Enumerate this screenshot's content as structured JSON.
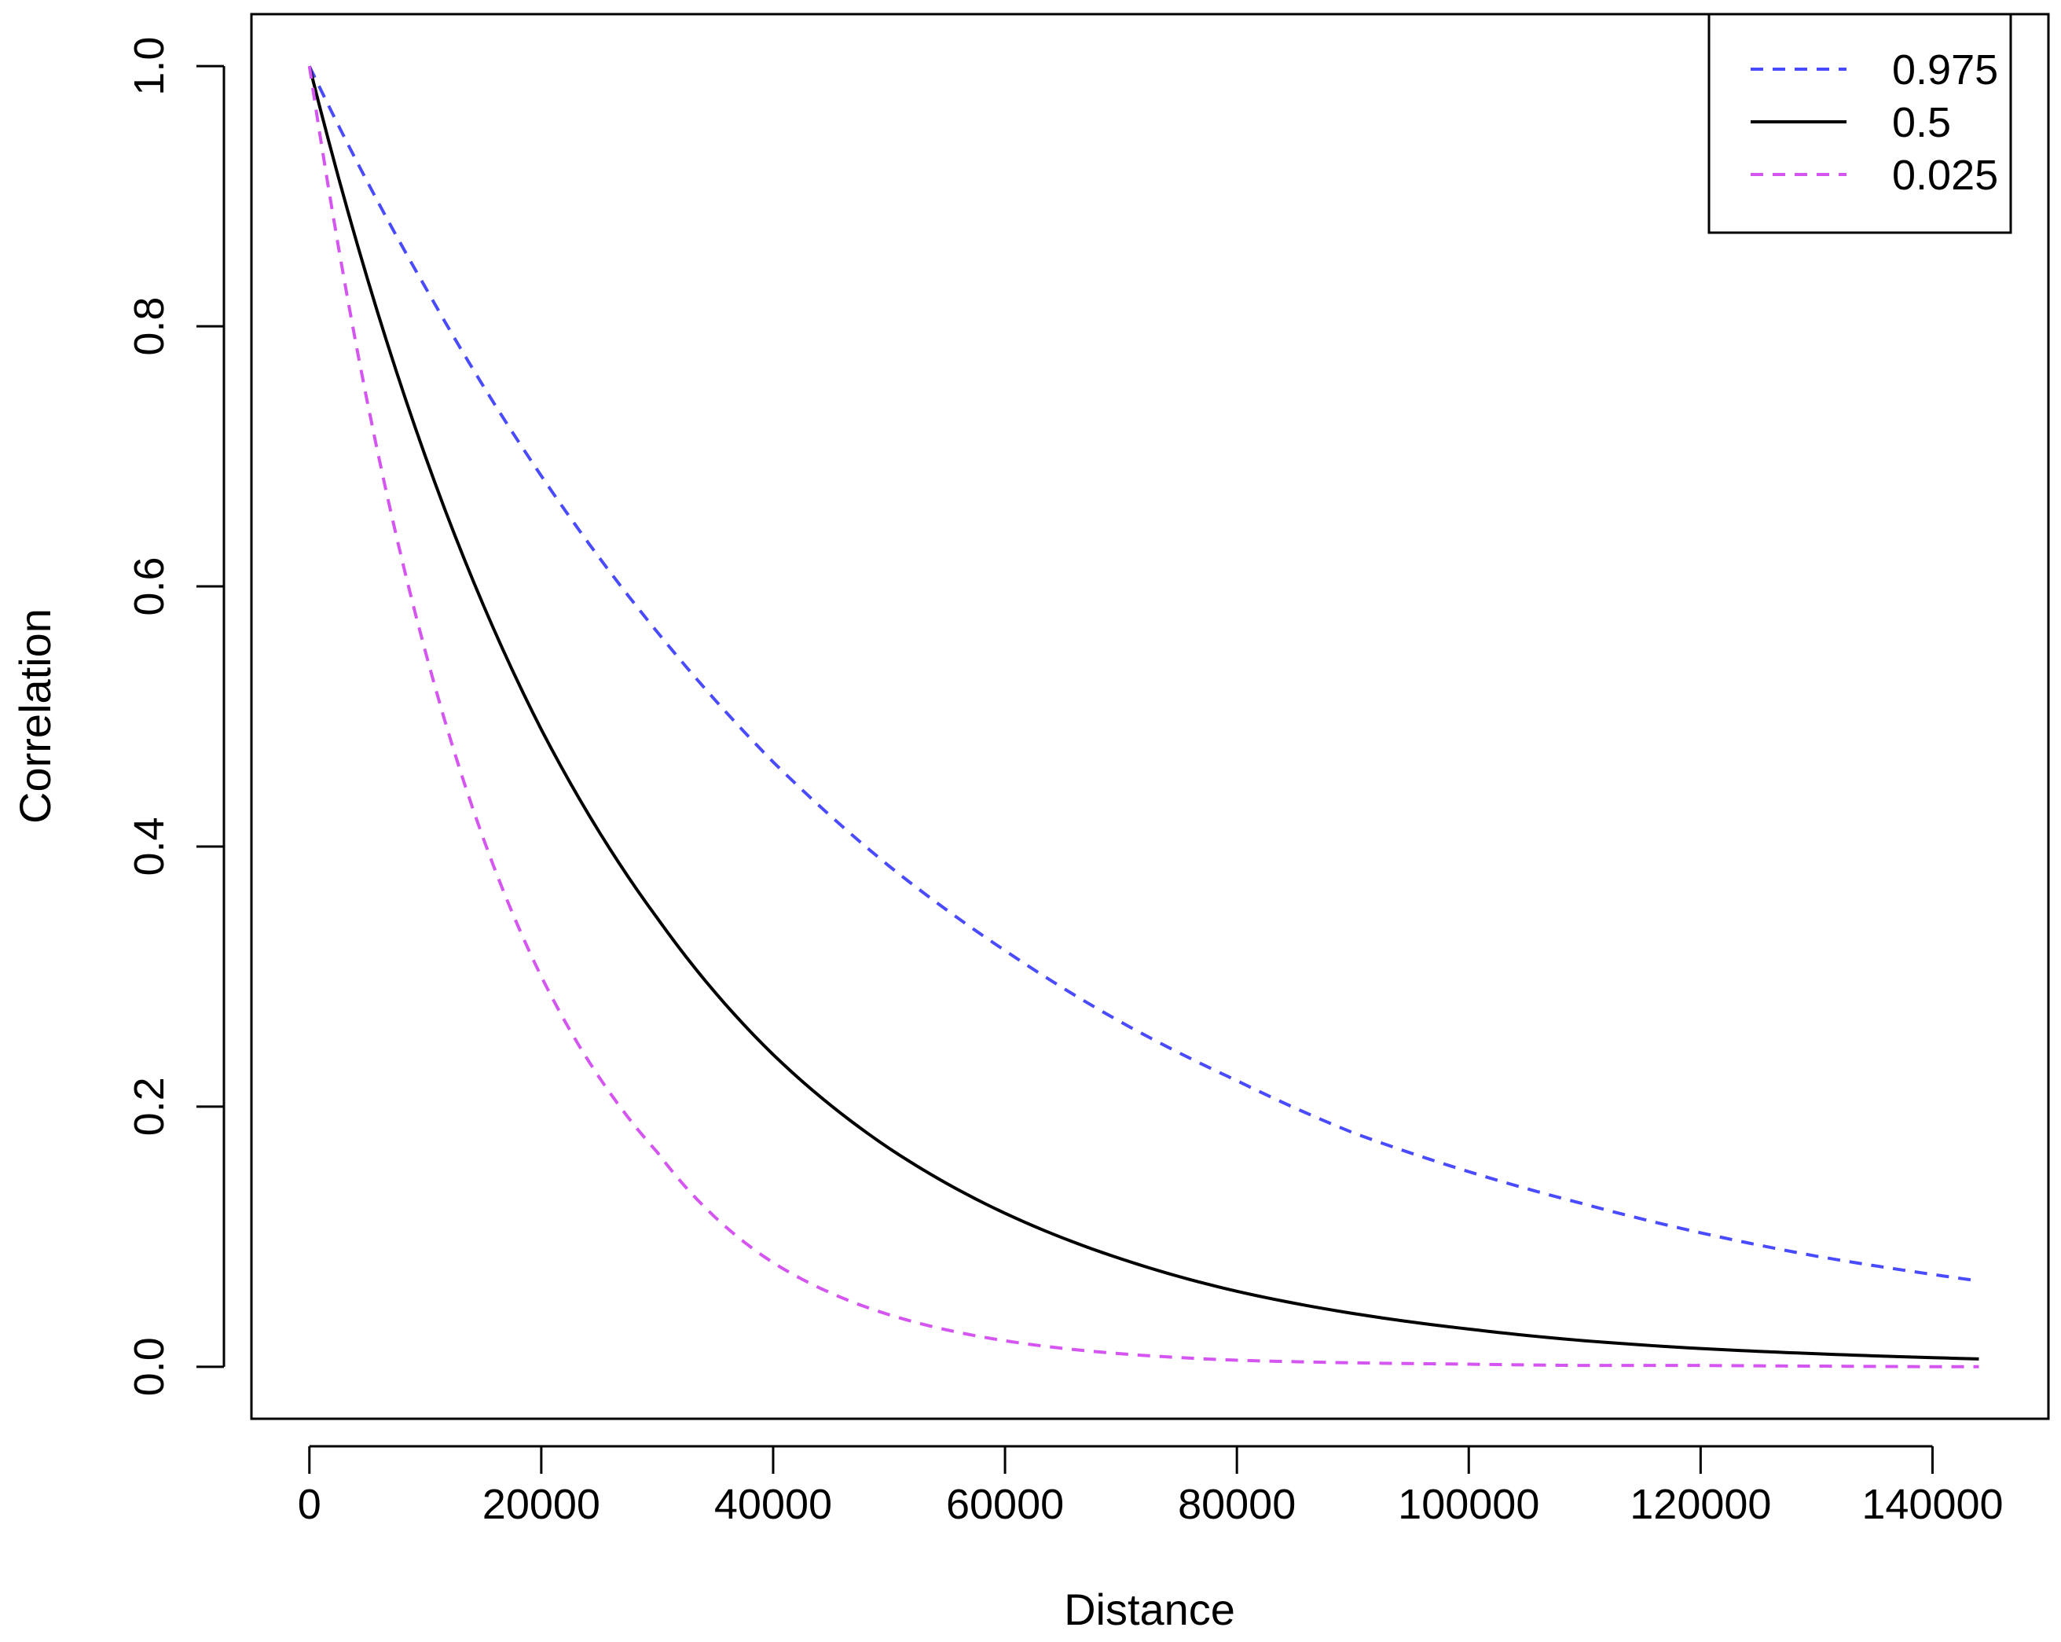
{
  "chart_data": {
    "type": "line",
    "xlabel": "Distance",
    "ylabel": "Correlation",
    "xlim": [
      -5000,
      150000
    ],
    "ylim": [
      -0.04,
      1.04
    ],
    "x_ticks": [
      0,
      20000,
      40000,
      60000,
      80000,
      100000,
      120000,
      140000
    ],
    "x_tick_labels": [
      "0",
      "20000",
      "40000",
      "60000",
      "80000",
      "100000",
      "120000",
      "140000"
    ],
    "y_ticks": [
      0.0,
      0.2,
      0.4,
      0.6,
      0.8,
      1.0
    ],
    "y_tick_labels": [
      "0.0",
      "0.2",
      "0.4",
      "0.6",
      "0.8",
      "1.0"
    ],
    "grid": false,
    "legend_position": "top-right",
    "series": [
      {
        "name": "0.975",
        "color": "#4a4aff",
        "style": "dashed",
        "x": [
          0,
          10000,
          20000,
          30000,
          40000,
          50000,
          60000,
          70000,
          80000,
          90000,
          100000,
          110000,
          120000,
          130000,
          140000,
          144000
        ],
        "y": [
          1.0,
          0.83,
          0.685,
          0.565,
          0.465,
          0.385,
          0.32,
          0.265,
          0.22,
          0.18,
          0.15,
          0.125,
          0.103,
          0.085,
          0.071,
          0.066
        ]
      },
      {
        "name": "0.5",
        "color": "#000000",
        "style": "solid",
        "x": [
          0,
          10000,
          20000,
          30000,
          40000,
          50000,
          60000,
          70000,
          80000,
          90000,
          100000,
          110000,
          120000,
          130000,
          140000,
          144000
        ],
        "y": [
          1.0,
          0.7,
          0.49,
          0.345,
          0.24,
          0.168,
          0.118,
          0.083,
          0.058,
          0.041,
          0.029,
          0.02,
          0.014,
          0.01,
          0.007,
          0.006
        ]
      },
      {
        "name": "0.025",
        "color": "#d455f0",
        "style": "dashed",
        "x": [
          0,
          10000,
          20000,
          30000,
          40000,
          50000,
          60000,
          70000,
          80000,
          90000,
          100000,
          110000,
          120000,
          130000,
          140000,
          144000
        ],
        "y": [
          1.0,
          0.55,
          0.3,
          0.165,
          0.08,
          0.04,
          0.02,
          0.01,
          0.005,
          0.003,
          0.002,
          0.001,
          0.001,
          0.0005,
          0.0,
          0.0
        ]
      }
    ]
  }
}
